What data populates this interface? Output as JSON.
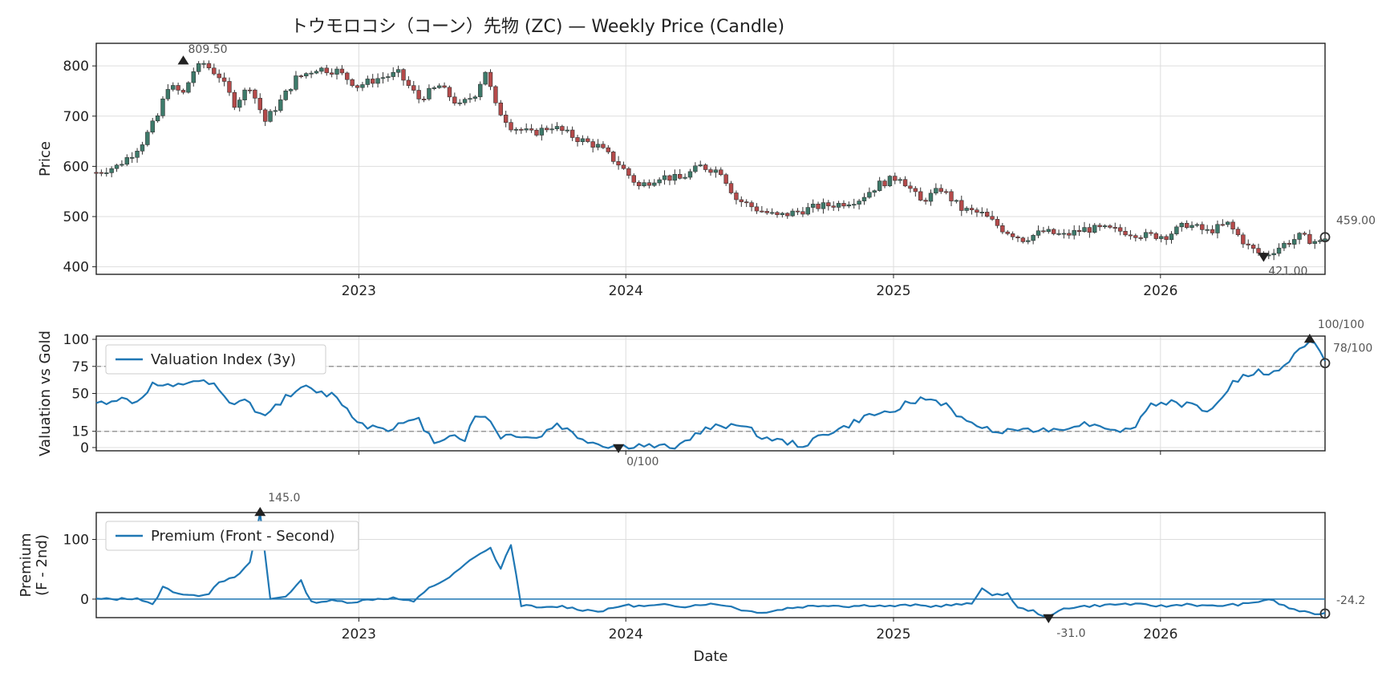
{
  "figure_title": "トウモロコシ（コーン）先物 (ZC) — Weekly Price (Candle)",
  "colors": {
    "up": "#3d7a6a",
    "down": "#b54a4a",
    "line": "#1f77b4",
    "ref": "#999999",
    "marker": "#222222"
  },
  "chart_data": [
    {
      "type": "candlestick",
      "ylabel": "Price",
      "ylim": [
        385,
        845
      ],
      "yticks": [
        400,
        500,
        600,
        700,
        800
      ],
      "x_start": "2022-01-07",
      "x_end": "2026-08-14",
      "xtick_labels": [
        "2023",
        "2024",
        "2025",
        "2026"
      ],
      "grid": true,
      "series_close": [
        [
          588,
          "2022-01-07"
        ],
        [
          600,
          "2022-02-04"
        ],
        [
          625,
          "2022-02-25"
        ],
        [
          648,
          "2022-03-11"
        ],
        [
          700,
          "2022-04-01"
        ],
        [
          760,
          "2022-04-15"
        ],
        [
          745,
          "2022-05-06"
        ],
        [
          790,
          "2022-05-20"
        ],
        [
          805,
          "2022-06-03"
        ],
        [
          780,
          "2022-06-24"
        ],
        [
          725,
          "2022-07-15"
        ],
        [
          760,
          "2022-08-05"
        ],
        [
          690,
          "2022-08-26"
        ],
        [
          730,
          "2022-09-16"
        ],
        [
          775,
          "2022-10-07"
        ],
        [
          795,
          "2022-11-04"
        ],
        [
          790,
          "2022-12-02"
        ],
        [
          760,
          "2022-12-30"
        ],
        [
          775,
          "2023-01-27"
        ],
        [
          785,
          "2023-02-24"
        ],
        [
          735,
          "2023-03-24"
        ],
        [
          760,
          "2023-04-21"
        ],
        [
          720,
          "2023-05-19"
        ],
        [
          745,
          "2023-06-09"
        ],
        [
          790,
          "2023-06-23"
        ],
        [
          720,
          "2023-07-07"
        ],
        [
          680,
          "2023-07-28"
        ],
        [
          665,
          "2023-08-25"
        ],
        [
          680,
          "2023-09-22"
        ],
        [
          655,
          "2023-10-27"
        ],
        [
          640,
          "2023-11-24"
        ],
        [
          605,
          "2023-12-22"
        ],
        [
          560,
          "2024-01-19"
        ],
        [
          580,
          "2024-02-16"
        ],
        [
          575,
          "2024-03-15"
        ],
        [
          600,
          "2024-04-12"
        ],
        [
          590,
          "2024-05-10"
        ],
        [
          535,
          "2024-05-31"
        ],
        [
          515,
          "2024-06-28"
        ],
        [
          500,
          "2024-07-26"
        ],
        [
          510,
          "2024-08-23"
        ],
        [
          520,
          "2024-09-20"
        ],
        [
          525,
          "2024-10-18"
        ],
        [
          535,
          "2024-11-15"
        ],
        [
          565,
          "2024-12-13"
        ],
        [
          580,
          "2025-01-10"
        ],
        [
          530,
          "2025-02-07"
        ],
        [
          555,
          "2025-03-07"
        ],
        [
          515,
          "2025-04-04"
        ],
        [
          505,
          "2025-05-02"
        ],
        [
          475,
          "2025-05-30"
        ],
        [
          455,
          "2025-06-27"
        ],
        [
          470,
          "2025-07-25"
        ],
        [
          462,
          "2025-08-22"
        ],
        [
          475,
          "2025-09-19"
        ],
        [
          475,
          "2025-10-17"
        ],
        [
          470,
          "2025-11-14"
        ],
        [
          462,
          "2025-12-12"
        ],
        [
          462,
          "2026-01-09"
        ],
        [
          485,
          "2026-02-06"
        ],
        [
          470,
          "2026-03-06"
        ],
        [
          485,
          "2026-04-03"
        ],
        [
          440,
          "2026-05-01"
        ],
        [
          421,
          "2026-05-22"
        ],
        [
          445,
          "2026-06-19"
        ],
        [
          460,
          "2026-07-10"
        ],
        [
          448,
          "2026-08-07"
        ],
        [
          459,
          "2026-08-14"
        ]
      ],
      "annotations": [
        {
          "label": "809.50",
          "date": "2022-05-06",
          "value": 809.5,
          "marker": "up-triangle"
        },
        {
          "label": "421.00",
          "date": "2026-05-22",
          "value": 421,
          "marker": "down-triangle"
        },
        {
          "label": "459.00",
          "date": "2026-08-14",
          "value": 459,
          "marker": "circle"
        }
      ]
    },
    {
      "type": "line",
      "ylabel": "Valuation vs Gold",
      "ylim": [
        -3,
        103
      ],
      "yticks": [
        0,
        15,
        50,
        75,
        100
      ],
      "reference_lines": [
        15,
        75
      ],
      "legend": "top-left",
      "series": [
        {
          "name": "Valuation Index (3y)",
          "points": [
            [
              "2022-01-07",
              40
            ],
            [
              "2022-02-04",
              45
            ],
            [
              "2022-03-04",
              42
            ],
            [
              "2022-03-25",
              58
            ],
            [
              "2022-04-22",
              55
            ],
            [
              "2022-05-20",
              62
            ],
            [
              "2022-06-17",
              57
            ],
            [
              "2022-07-08",
              40
            ],
            [
              "2022-07-29",
              44
            ],
            [
              "2022-08-19",
              30
            ],
            [
              "2022-09-09",
              38
            ],
            [
              "2022-09-30",
              50
            ],
            [
              "2022-10-21",
              55
            ],
            [
              "2022-11-11",
              50
            ],
            [
              "2022-12-02",
              48
            ],
            [
              "2022-12-23",
              28
            ],
            [
              "2023-01-13",
              20
            ],
            [
              "2023-02-10",
              18
            ],
            [
              "2023-03-03",
              22
            ],
            [
              "2023-03-24",
              25
            ],
            [
              "2023-04-14",
              5
            ],
            [
              "2023-05-05",
              12
            ],
            [
              "2023-05-26",
              8
            ],
            [
              "2023-06-09",
              28
            ],
            [
              "2023-06-23",
              30
            ],
            [
              "2023-07-14",
              10
            ],
            [
              "2023-08-04",
              12
            ],
            [
              "2023-09-01",
              8
            ],
            [
              "2023-09-29",
              22
            ],
            [
              "2023-10-27",
              10
            ],
            [
              "2023-11-24",
              3
            ],
            [
              "2023-12-22",
              0
            ],
            [
              "2024-01-19",
              2
            ],
            [
              "2024-02-16",
              0
            ],
            [
              "2024-03-15",
              2
            ],
            [
              "2024-04-12",
              15
            ],
            [
              "2024-05-10",
              20
            ],
            [
              "2024-06-07",
              22
            ],
            [
              "2024-07-05",
              10
            ],
            [
              "2024-08-02",
              5
            ],
            [
              "2024-08-30",
              2
            ],
            [
              "2024-09-27",
              12
            ],
            [
              "2024-10-25",
              18
            ],
            [
              "2024-11-22",
              28
            ],
            [
              "2024-12-20",
              32
            ],
            [
              "2025-01-17",
              40
            ],
            [
              "2025-02-14",
              45
            ],
            [
              "2025-03-14",
              40
            ],
            [
              "2025-04-11",
              22
            ],
            [
              "2025-05-09",
              18
            ],
            [
              "2025-06-06",
              15
            ],
            [
              "2025-07-04",
              18
            ],
            [
              "2025-08-01",
              15
            ],
            [
              "2025-08-29",
              20
            ],
            [
              "2025-09-26",
              22
            ],
            [
              "2025-10-24",
              18
            ],
            [
              "2025-11-21",
              15
            ],
            [
              "2025-12-19",
              40
            ],
            [
              "2026-01-16",
              42
            ],
            [
              "2026-02-13",
              38
            ],
            [
              "2026-03-13",
              35
            ],
            [
              "2026-04-10",
              60
            ],
            [
              "2026-05-08",
              70
            ],
            [
              "2026-06-05",
              68
            ],
            [
              "2026-07-03",
              85
            ],
            [
              "2026-07-24",
              100
            ],
            [
              "2026-08-07",
              90
            ],
            [
              "2026-08-14",
              78
            ]
          ]
        }
      ],
      "annotations": [
        {
          "label": "100/100",
          "date": "2026-07-24",
          "value": 100,
          "marker": "up-triangle"
        },
        {
          "label": "0/100",
          "date": "2023-12-22",
          "value": 0,
          "marker": "down-triangle"
        },
        {
          "label": "78/100",
          "date": "2026-08-14",
          "value": 78,
          "marker": "circle"
        }
      ]
    },
    {
      "type": "line",
      "ylabel": "Premium\n(F - 2nd)",
      "ylabel_lines": [
        "Premium",
        "(F - 2nd)"
      ],
      "xlabel": "Date",
      "ylim": [
        -31,
        145
      ],
      "yticks": [
        0,
        100
      ],
      "reference_lines": [
        0
      ],
      "legend": "top-left",
      "xtick_labels": [
        "2023",
        "2024",
        "2025",
        "2026"
      ],
      "series": [
        {
          "name": "Premium (Front - Second)",
          "points": [
            [
              "2022-01-07",
              0
            ],
            [
              "2022-02-04",
              0
            ],
            [
              "2022-03-04",
              2
            ],
            [
              "2022-03-25",
              -10
            ],
            [
              "2022-04-08",
              20
            ],
            [
              "2022-04-29",
              10
            ],
            [
              "2022-05-20",
              5
            ],
            [
              "2022-06-10",
              10
            ],
            [
              "2022-06-24",
              30
            ],
            [
              "2022-07-15",
              35
            ],
            [
              "2022-08-05",
              60
            ],
            [
              "2022-08-19",
              145
            ],
            [
              "2022-09-02",
              0
            ],
            [
              "2022-09-23",
              5
            ],
            [
              "2022-10-14",
              30
            ],
            [
              "2022-10-28",
              -5
            ],
            [
              "2022-11-25",
              -3
            ],
            [
              "2022-12-23",
              -5
            ],
            [
              "2023-01-20",
              0
            ],
            [
              "2023-02-17",
              2
            ],
            [
              "2023-03-17",
              -5
            ],
            [
              "2023-04-07",
              20
            ],
            [
              "2023-04-28",
              30
            ],
            [
              "2023-05-19",
              50
            ],
            [
              "2023-06-09",
              72
            ],
            [
              "2023-06-30",
              85
            ],
            [
              "2023-07-14",
              50
            ],
            [
              "2023-07-28",
              92
            ],
            [
              "2023-08-11",
              -10
            ],
            [
              "2023-09-08",
              -15
            ],
            [
              "2023-10-06",
              -12
            ],
            [
              "2023-11-03",
              -18
            ],
            [
              "2023-12-01",
              -20
            ],
            [
              "2023-12-29",
              -10
            ],
            [
              "2024-01-26",
              -12
            ],
            [
              "2024-02-23",
              -10
            ],
            [
              "2024-03-22",
              -12
            ],
            [
              "2024-04-19",
              -8
            ],
            [
              "2024-05-17",
              -10
            ],
            [
              "2024-06-14",
              -20
            ],
            [
              "2024-07-12",
              -22
            ],
            [
              "2024-08-09",
              -15
            ],
            [
              "2024-09-06",
              -12
            ],
            [
              "2024-10-04",
              -10
            ],
            [
              "2024-11-01",
              -12
            ],
            [
              "2024-11-29",
              -10
            ],
            [
              "2024-12-27",
              -12
            ],
            [
              "2025-01-24",
              -10
            ],
            [
              "2025-02-21",
              -12
            ],
            [
              "2025-03-21",
              -10
            ],
            [
              "2025-04-18",
              -8
            ],
            [
              "2025-05-02",
              20
            ],
            [
              "2025-05-16",
              5
            ],
            [
              "2025-06-06",
              10
            ],
            [
              "2025-06-20",
              -15
            ],
            [
              "2025-07-11",
              -20
            ],
            [
              "2025-08-01",
              -31
            ],
            [
              "2025-08-22",
              -15
            ],
            [
              "2025-09-19",
              -12
            ],
            [
              "2025-10-17",
              -10
            ],
            [
              "2025-11-14",
              -8
            ],
            [
              "2025-12-12",
              -10
            ],
            [
              "2026-01-09",
              -12
            ],
            [
              "2026-02-06",
              -8
            ],
            [
              "2026-03-06",
              -12
            ],
            [
              "2026-04-03",
              -10
            ],
            [
              "2026-05-01",
              -8
            ],
            [
              "2026-05-29",
              0
            ],
            [
              "2026-06-26",
              -15
            ],
            [
              "2026-07-24",
              -24.2
            ],
            [
              "2026-08-14",
              -24.2
            ]
          ]
        }
      ],
      "annotations": [
        {
          "label": "145.0",
          "date": "2022-08-19",
          "value": 145,
          "marker": "up-triangle"
        },
        {
          "label": "-31.0",
          "date": "2025-08-01",
          "value": -31,
          "marker": "down-triangle"
        },
        {
          "label": "-24.2",
          "date": "2026-08-14",
          "value": -24.2,
          "marker": "circle"
        }
      ]
    }
  ]
}
